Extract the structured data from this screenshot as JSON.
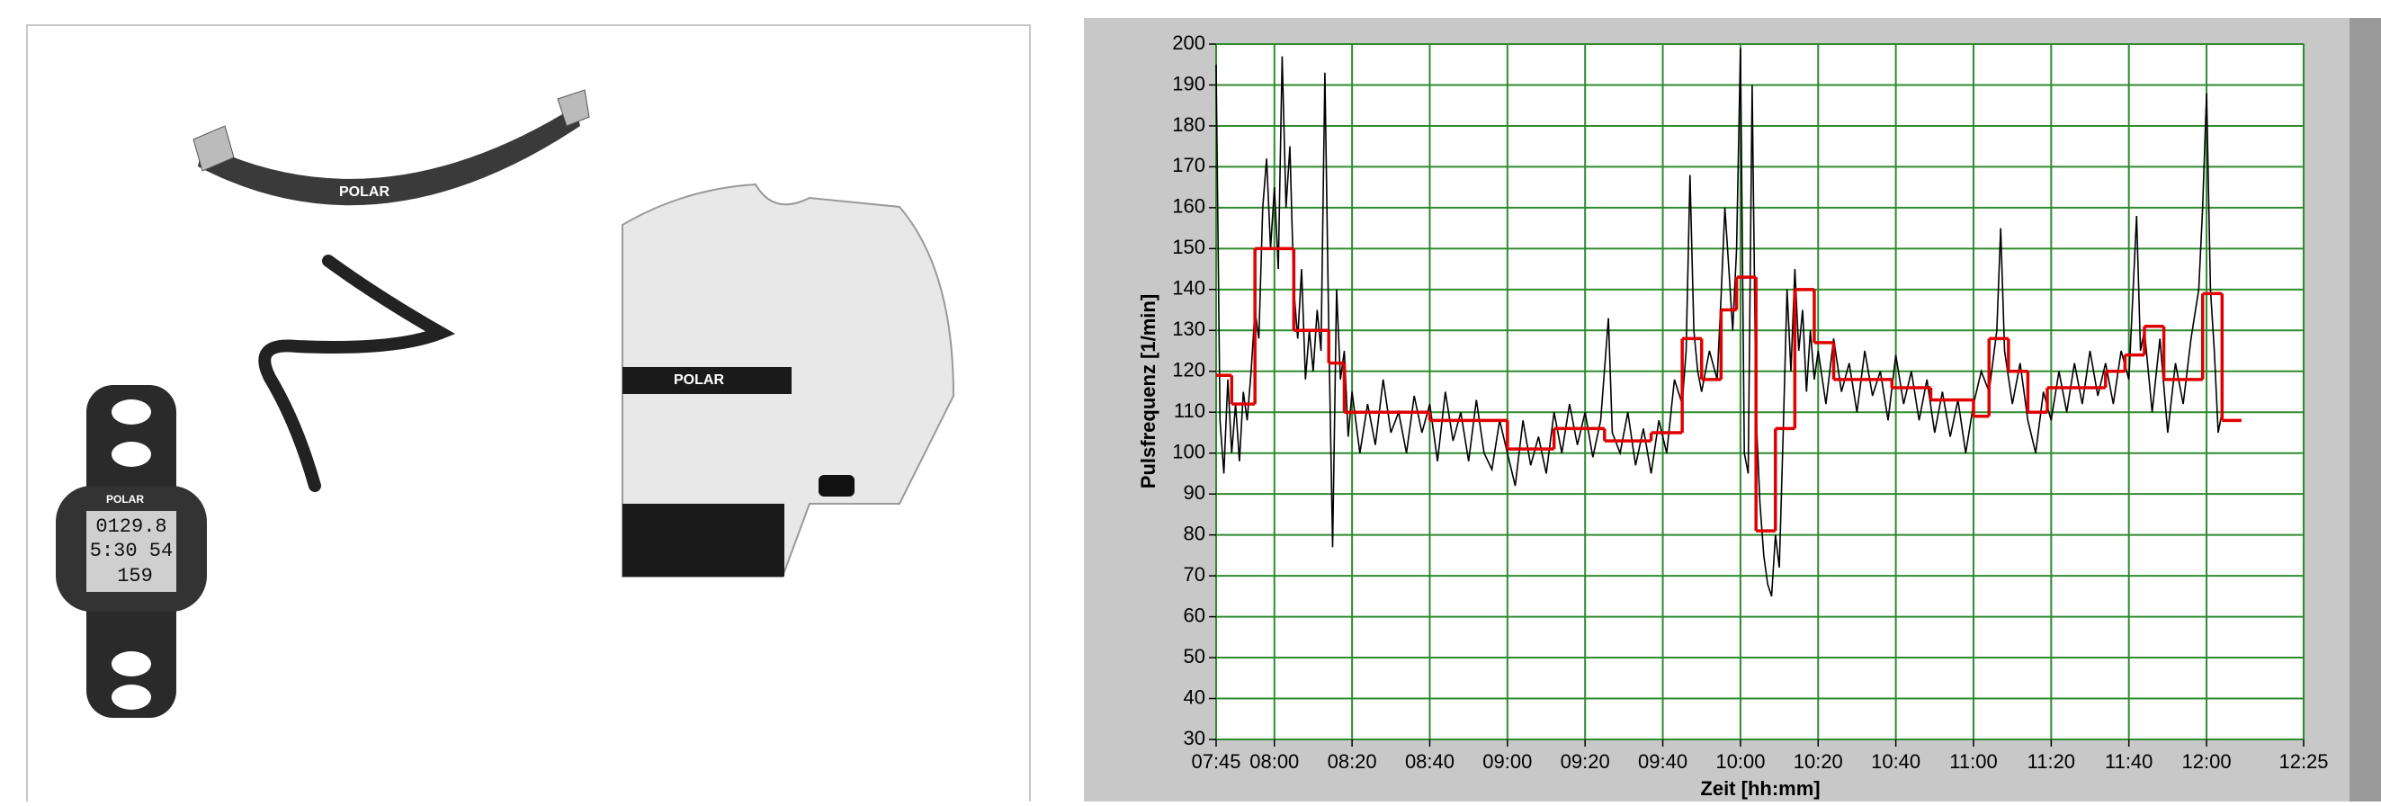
{
  "illustration": {
    "strap_logo": "POLAR",
    "belt_logo": "POLAR",
    "watch_brand": "POLAR",
    "watch_lines": [
      "0129.8",
      "5:30 54",
      "159"
    ]
  },
  "chart_data": {
    "type": "line",
    "y_label": "Pulsfrequenz [1/min]",
    "x_label": "Zeit [hh:mm]",
    "xlim": [
      "07:45",
      "12:25"
    ],
    "ylim": [
      30,
      200
    ],
    "xticks": [
      "07:45",
      "08:00",
      "08:20",
      "08:40",
      "09:00",
      "09:20",
      "09:40",
      "10:00",
      "10:20",
      "10:40",
      "11:00",
      "11:20",
      "11:40",
      "12:00",
      "12:25"
    ],
    "yticks": [
      30,
      40,
      50,
      60,
      70,
      80,
      90,
      100,
      110,
      120,
      130,
      140,
      150,
      160,
      170,
      180,
      190,
      200
    ],
    "grid": true,
    "grid_color": "#2e8b2e",
    "series": [
      {
        "color": "#000000",
        "step": false,
        "x": [
          "07:45",
          "07:46",
          "07:47",
          "07:48",
          "07:49",
          "07:50",
          "07:51",
          "07:52",
          "07:53",
          "07:54",
          "07:55",
          "07:56",
          "07:57",
          "07:58",
          "07:59",
          "08:00",
          "08:01",
          "08:02",
          "08:03",
          "08:04",
          "08:05",
          "08:06",
          "08:07",
          "08:08",
          "08:09",
          "08:10",
          "08:11",
          "08:12",
          "08:13",
          "08:14",
          "08:15",
          "08:16",
          "08:17",
          "08:18",
          "08:19",
          "08:20",
          "08:22",
          "08:24",
          "08:26",
          "08:28",
          "08:30",
          "08:32",
          "08:34",
          "08:36",
          "08:38",
          "08:40",
          "08:42",
          "08:44",
          "08:46",
          "08:48",
          "08:50",
          "08:52",
          "08:54",
          "08:56",
          "08:58",
          "09:00",
          "09:02",
          "09:04",
          "09:06",
          "09:08",
          "09:10",
          "09:12",
          "09:14",
          "09:16",
          "09:18",
          "09:20",
          "09:22",
          "09:24",
          "09:26",
          "09:27",
          "09:29",
          "09:31",
          "09:33",
          "09:35",
          "09:37",
          "09:39",
          "09:41",
          "09:43",
          "09:45",
          "09:46",
          "09:47",
          "09:48",
          "09:49",
          "09:50",
          "09:52",
          "09:54",
          "09:55",
          "09:56",
          "09:57",
          "09:58",
          "09:59",
          "10:00",
          "10:01",
          "10:02",
          "10:03",
          "10:04",
          "10:05",
          "10:06",
          "10:07",
          "10:08",
          "10:09",
          "10:10",
          "10:11",
          "10:12",
          "10:13",
          "10:14",
          "10:15",
          "10:16",
          "10:17",
          "10:18",
          "10:19",
          "10:20",
          "10:22",
          "10:24",
          "10:26",
          "10:28",
          "10:30",
          "10:32",
          "10:34",
          "10:36",
          "10:38",
          "10:40",
          "10:42",
          "10:44",
          "10:46",
          "10:48",
          "10:50",
          "10:52",
          "10:54",
          "10:56",
          "10:58",
          "11:00",
          "11:02",
          "11:04",
          "11:06",
          "11:07",
          "11:08",
          "11:10",
          "11:12",
          "11:14",
          "11:16",
          "11:18",
          "11:20",
          "11:22",
          "11:24",
          "11:26",
          "11:28",
          "11:30",
          "11:32",
          "11:34",
          "11:36",
          "11:38",
          "11:40",
          "11:42",
          "11:43",
          "11:44",
          "11:46",
          "11:48",
          "11:50",
          "11:52",
          "11:54",
          "11:56",
          "11:58",
          "11:59",
          "12:00",
          "12:01",
          "12:02",
          "12:03",
          "12:04"
        ],
        "values": [
          195,
          108,
          95,
          118,
          100,
          112,
          98,
          115,
          108,
          120,
          135,
          128,
          160,
          172,
          150,
          165,
          145,
          197,
          160,
          175,
          140,
          128,
          145,
          118,
          130,
          120,
          135,
          125,
          193,
          130,
          77,
          140,
          118,
          125,
          104,
          115,
          100,
          112,
          102,
          118,
          105,
          110,
          100,
          114,
          105,
          112,
          98,
          115,
          103,
          110,
          98,
          113,
          100,
          96,
          108,
          100,
          92,
          108,
          97,
          104,
          95,
          110,
          100,
          112,
          102,
          110,
          99,
          108,
          133,
          105,
          100,
          110,
          97,
          106,
          95,
          108,
          100,
          118,
          112,
          125,
          168,
          130,
          120,
          115,
          125,
          118,
          138,
          160,
          145,
          130,
          150,
          199,
          100,
          95,
          190,
          110,
          88,
          75,
          68,
          65,
          80,
          72,
          105,
          140,
          120,
          145,
          125,
          135,
          115,
          130,
          118,
          125,
          112,
          128,
          115,
          122,
          110,
          125,
          114,
          120,
          108,
          124,
          112,
          120,
          108,
          118,
          105,
          115,
          104,
          113,
          100,
          112,
          120,
          115,
          130,
          155,
          125,
          112,
          122,
          108,
          100,
          115,
          108,
          120,
          110,
          122,
          112,
          125,
          114,
          122,
          112,
          125,
          118,
          158,
          125,
          130,
          110,
          128,
          105,
          122,
          112,
          128,
          140,
          160,
          188,
          140,
          125,
          105,
          110
        ]
      },
      {
        "color": "#e00000",
        "step": true,
        "x": [
          "07:45",
          "07:49",
          "07:55",
          "08:05",
          "08:14",
          "08:18",
          "08:22",
          "08:40",
          "09:00",
          "09:12",
          "09:25",
          "09:37",
          "09:45",
          "09:50",
          "09:55",
          "09:59",
          "10:04",
          "10:09",
          "10:14",
          "10:19",
          "10:24",
          "10:39",
          "10:49",
          "11:00",
          "11:04",
          "11:09",
          "11:14",
          "11:19",
          "11:34",
          "11:39",
          "11:44",
          "11:49",
          "11:59",
          "12:04",
          "12:09"
        ],
        "values": [
          119,
          112,
          150,
          130,
          122,
          110,
          110,
          108,
          101,
          106,
          103,
          105,
          128,
          118,
          135,
          143,
          81,
          106,
          140,
          127,
          118,
          116,
          113,
          109,
          128,
          120,
          110,
          116,
          120,
          124,
          131,
          118,
          139,
          108,
          null
        ]
      }
    ]
  }
}
